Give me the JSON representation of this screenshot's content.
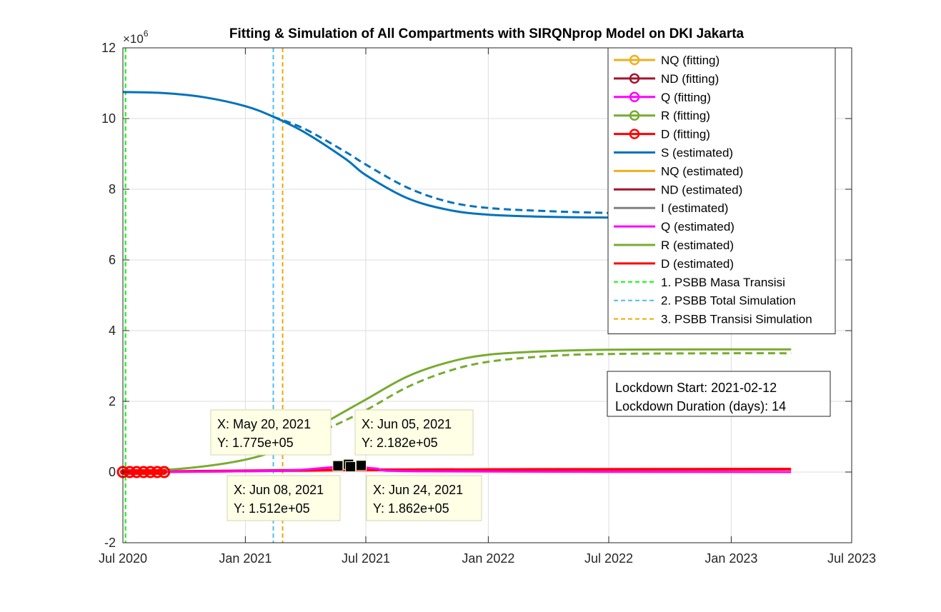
{
  "chart_data": {
    "type": "line",
    "title": "Fitting & Simulation of All Compartments with SIRQNprop Model on DKI Jakarta",
    "y_exponent_label": "×10",
    "y_exponent_power": "6",
    "y_multiplier": 1000000,
    "ylim": [
      -2,
      12
    ],
    "yticks": [
      -2,
      0,
      2,
      4,
      6,
      8,
      10,
      12
    ],
    "ytick_labels": [
      "-2",
      "0",
      "2",
      "4",
      "6",
      "8",
      "10",
      "12"
    ],
    "xlim": [
      "2020-07-01",
      "2023-07-01"
    ],
    "xticks": [
      "2020-07-01",
      "2021-01-01",
      "2021-07-01",
      "2022-01-01",
      "2022-07-01",
      "2023-01-01",
      "2023-07-01"
    ],
    "xtick_labels": [
      "Jul 2020",
      "Jan 2021",
      "Jul 2021",
      "Jan 2022",
      "Jul 2022",
      "Jan 2023",
      "Jul 2023"
    ],
    "grid": true,
    "legend_position": "top-right",
    "series": [
      {
        "name": "NQ (fitting)",
        "color": "#EDB120",
        "style": "line-circle"
      },
      {
        "name": "ND (fitting)",
        "color": "#A2142F",
        "style": "line-circle"
      },
      {
        "name": "Q (fitting)",
        "color": "#FF00FF",
        "style": "line-circle"
      },
      {
        "name": "R (fitting)",
        "color": "#77AC30",
        "style": "line-circle"
      },
      {
        "name": "D (fitting)",
        "color": "#FF0000",
        "style": "line-circle"
      },
      {
        "name": "S (estimated)",
        "color": "#0072BD",
        "style": "solid",
        "x": [
          "2020-07-01",
          "2020-09-01",
          "2020-11-01",
          "2021-01-01",
          "2021-02-12",
          "2021-04-01",
          "2021-06-01",
          "2021-07-01",
          "2021-09-01",
          "2021-11-01",
          "2022-01-01",
          "2022-04-01",
          "2022-07-01",
          "2022-09-15"
        ],
        "values": [
          10.75,
          10.72,
          10.6,
          10.35,
          10.05,
          9.6,
          8.85,
          8.4,
          7.75,
          7.42,
          7.28,
          7.22,
          7.2,
          7.2
        ]
      },
      {
        "name": "S (simulated, dashed)",
        "color": "#0072BD",
        "style": "dashed",
        "x": [
          "2021-02-12",
          "2021-04-01",
          "2021-06-01",
          "2021-07-01",
          "2021-09-01",
          "2021-11-01",
          "2022-01-01",
          "2022-04-01",
          "2022-07-01",
          "2022-09-15"
        ],
        "values": [
          10.05,
          9.7,
          9.05,
          8.7,
          8.05,
          7.65,
          7.47,
          7.38,
          7.33,
          7.32
        ]
      },
      {
        "name": "NQ (estimated)",
        "color": "#EDB120",
        "style": "solid"
      },
      {
        "name": "ND (estimated)",
        "color": "#A2142F",
        "style": "solid"
      },
      {
        "name": "I (estimated)",
        "color": "#808080",
        "style": "solid"
      },
      {
        "name": "Q (estimated)",
        "color": "#FF00FF",
        "style": "solid",
        "x": [
          "2020-07-01",
          "2021-02-12",
          "2021-05-01",
          "2021-06-08",
          "2021-07-15",
          "2021-10-01",
          "2023-04-01"
        ],
        "values": [
          0.0,
          0.03,
          0.12,
          0.17,
          0.1,
          0.02,
          0.0
        ]
      },
      {
        "name": "R (estimated)",
        "color": "#77AC30",
        "style": "solid",
        "x": [
          "2020-07-01",
          "2020-10-01",
          "2021-01-01",
          "2021-03-01",
          "2021-05-01",
          "2021-07-01",
          "2021-09-01",
          "2021-11-01",
          "2022-01-01",
          "2022-04-01",
          "2022-07-01",
          "2023-01-01",
          "2023-04-01"
        ],
        "values": [
          0.02,
          0.1,
          0.35,
          0.72,
          1.4,
          2.05,
          2.7,
          3.1,
          3.32,
          3.42,
          3.46,
          3.47,
          3.47
        ]
      },
      {
        "name": "R (simulated, dashed)",
        "color": "#77AC30",
        "style": "dashed",
        "x": [
          "2021-02-12",
          "2021-05-01",
          "2021-07-01",
          "2021-09-01",
          "2021-11-01",
          "2022-01-01",
          "2022-04-01",
          "2022-07-01",
          "2023-01-01",
          "2023-04-01"
        ],
        "values": [
          0.55,
          1.2,
          1.75,
          2.4,
          2.85,
          3.12,
          3.28,
          3.34,
          3.36,
          3.36
        ]
      },
      {
        "name": "D (estimated)",
        "color": "#FF0000",
        "style": "solid",
        "x": [
          "2020-07-01",
          "2021-06-01",
          "2023-04-01"
        ],
        "values": [
          0.0,
          0.06,
          0.08
        ]
      },
      {
        "name": "1. PSBB Masa Transisi",
        "color": "#00FF00",
        "style": "dashed-vline",
        "x": "2020-07-05"
      },
      {
        "name": "2. PSBB Total Simulation",
        "color": "#4DBEEE",
        "style": "dashed-vline",
        "x": "2021-02-12"
      },
      {
        "name": "3. PSBB Transisi Simulation",
        "color": "#F0A800",
        "style": "dashed-vline",
        "x": "2021-02-26"
      }
    ],
    "fitting_markers": {
      "color": "#FF0000",
      "x_start": "2020-07-01",
      "x_end": "2020-09-01",
      "values": [
        0.0,
        0.0,
        0.0,
        0.0,
        0.0,
        0.0,
        0.0
      ]
    },
    "datatips": [
      {
        "x": "2021-05-20",
        "y": 177500,
        "x_label": "X: May 20, 2021",
        "y_label": "Y: 1.775e+05"
      },
      {
        "x": "2021-06-05",
        "y": 218200,
        "x_label": "X: Jun 05, 2021",
        "y_label": "Y: 2.182e+05"
      },
      {
        "x": "2021-06-08",
        "y": 151200,
        "x_label": "X: Jun 08, 2021",
        "y_label": "Y: 1.512e+05"
      },
      {
        "x": "2021-06-24",
        "y": 186200,
        "x_label": "X: Jun 24, 2021",
        "y_label": "Y: 1.862e+05"
      }
    ],
    "annotation": {
      "lines": [
        "Lockdown Start: 2021-02-12",
        "Lockdown Duration (days): 14"
      ]
    }
  }
}
